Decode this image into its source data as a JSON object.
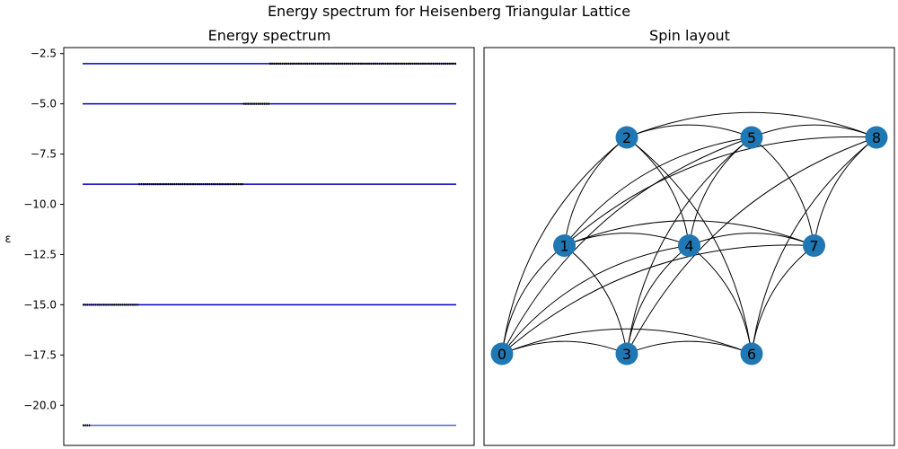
{
  "figure": {
    "suptitle": "Energy spectrum for Heisenberg Triangular Lattice"
  },
  "chart_data": [
    {
      "type": "line",
      "title": "Energy spectrum",
      "xlabel": "",
      "ylabel": "ε",
      "ylim": [
        -22.0,
        -2.2
      ],
      "yticks": [
        -2.5,
        -5.0,
        -7.5,
        -10.0,
        -12.5,
        -15.0,
        -17.5,
        -20.0
      ],
      "ytick_labels": [
        "−2.5",
        "−5.0",
        "−7.5",
        "−10.0",
        "−12.5",
        "−15.0",
        "−17.5",
        "−20.0"
      ],
      "x_axis_visible": false,
      "levels": [
        {
          "energy": -3.0,
          "color": "#0000cc"
        },
        {
          "energy": -5.0,
          "color": "#0000cc"
        },
        {
          "energy": -9.0,
          "color": "#0000cc"
        },
        {
          "energy": -15.0,
          "color": "#0000cc"
        },
        {
          "energy": -21.0,
          "color": "#5a5adc"
        }
      ],
      "eigenvalue_clusters": [
        {
          "energy": -21.0,
          "x_range": [
            0.0,
            0.02
          ]
        },
        {
          "energy": -15.0,
          "x_range": [
            0.0,
            0.15
          ]
        },
        {
          "energy": -9.0,
          "x_range": [
            0.15,
            0.43
          ]
        },
        {
          "energy": -5.0,
          "x_range": [
            0.43,
            0.5
          ]
        },
        {
          "energy": -3.0,
          "x_range": [
            0.5,
            1.0
          ]
        }
      ],
      "cluster_color": "#000000"
    },
    {
      "type": "graph",
      "title": "Spin layout",
      "node_color": "#1f77b4",
      "nodes": [
        {
          "id": "0",
          "col": 0,
          "row": 0
        },
        {
          "id": "1",
          "col": 0.5,
          "row": 1
        },
        {
          "id": "2",
          "col": 1,
          "row": 2
        },
        {
          "id": "3",
          "col": 1,
          "row": 0
        },
        {
          "id": "4",
          "col": 1.5,
          "row": 1
        },
        {
          "id": "5",
          "col": 2,
          "row": 2
        },
        {
          "id": "6",
          "col": 2,
          "row": 0
        },
        {
          "id": "7",
          "col": 2.5,
          "row": 1
        },
        {
          "id": "8",
          "col": 3,
          "row": 2
        }
      ],
      "edges": [
        [
          "0",
          "1"
        ],
        [
          "0",
          "2"
        ],
        [
          "0",
          "3"
        ],
        [
          "0",
          "4"
        ],
        [
          "0",
          "5"
        ],
        [
          "0",
          "6"
        ],
        [
          "0",
          "7"
        ],
        [
          "1",
          "2"
        ],
        [
          "1",
          "3"
        ],
        [
          "1",
          "4"
        ],
        [
          "1",
          "5"
        ],
        [
          "1",
          "7"
        ],
        [
          "1",
          "8"
        ],
        [
          "2",
          "4"
        ],
        [
          "2",
          "5"
        ],
        [
          "2",
          "6"
        ],
        [
          "2",
          "8"
        ],
        [
          "3",
          "4"
        ],
        [
          "3",
          "5"
        ],
        [
          "3",
          "6"
        ],
        [
          "3",
          "8"
        ],
        [
          "4",
          "5"
        ],
        [
          "4",
          "6"
        ],
        [
          "4",
          "7"
        ],
        [
          "5",
          "7"
        ],
        [
          "5",
          "8"
        ],
        [
          "6",
          "7"
        ],
        [
          "6",
          "8"
        ],
        [
          "7",
          "8"
        ]
      ]
    }
  ]
}
